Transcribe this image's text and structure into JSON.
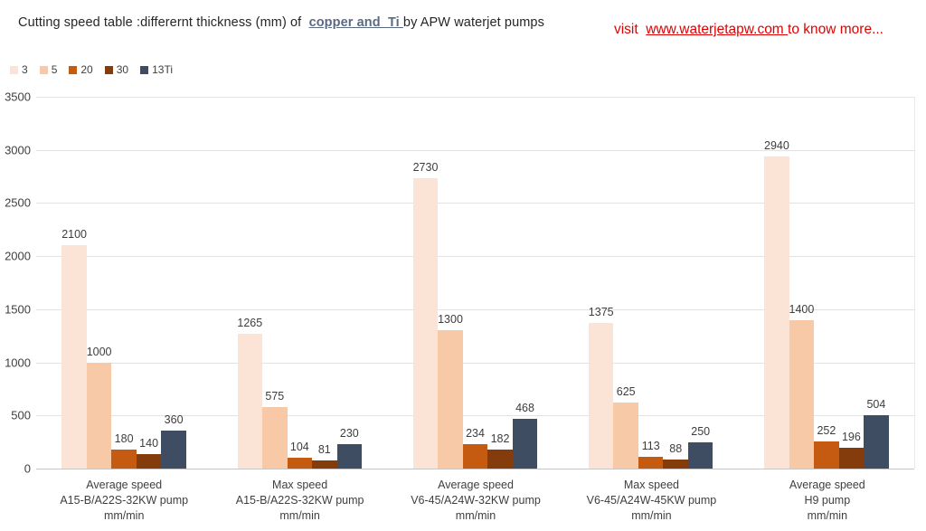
{
  "header": {
    "title_prefix": "Cutting speed table :differernt thickness (mm) of  ",
    "title_link": "copper and  Ti ",
    "title_suffix": "by APW waterjet pumps",
    "note_prefix": "visit  ",
    "note_link": "www.waterjetapw.com ",
    "note_suffix": "to know more..."
  },
  "chart_data": {
    "type": "bar",
    "title": "Cutting speed table :differernt thickness (mm) of copper and Ti by APW waterjet pumps",
    "xlabel": "",
    "ylabel": "",
    "ylim": [
      0,
      3500
    ],
    "ytick_step": 500,
    "grid": "horizontal",
    "legend_position": "top-left",
    "unit": "mm/min",
    "categories": [
      [
        "Average speed",
        "A15-B/A22S-32KW  pump",
        "mm/min"
      ],
      [
        "Max speed",
        "A15-B/A22S-32KW  pump",
        "mm/min"
      ],
      [
        "Average speed",
        "V6-45/A24W-32KW pump",
        "mm/min"
      ],
      [
        "Max speed",
        "V6-45/A24W-45KW  pump",
        "mm/min"
      ],
      [
        "Average speed",
        "H9  pump",
        "mm/min"
      ]
    ],
    "series": [
      {
        "name": "3",
        "color": "#FBE3D5",
        "values": [
          2100,
          1265,
          2730,
          1375,
          2940
        ]
      },
      {
        "name": "5",
        "color": "#F7C9A6",
        "values": [
          1000,
          575,
          1300,
          625,
          1400
        ]
      },
      {
        "name": "20",
        "color": "#C55A11",
        "values": [
          180,
          104,
          234,
          113,
          252
        ]
      },
      {
        "name": "30",
        "color": "#843C0C",
        "values": [
          140,
          81,
          182,
          88,
          196
        ]
      },
      {
        "name": "13Ti",
        "color": "#3E4D61",
        "values": [
          360,
          230,
          468,
          250,
          504
        ]
      }
    ]
  }
}
